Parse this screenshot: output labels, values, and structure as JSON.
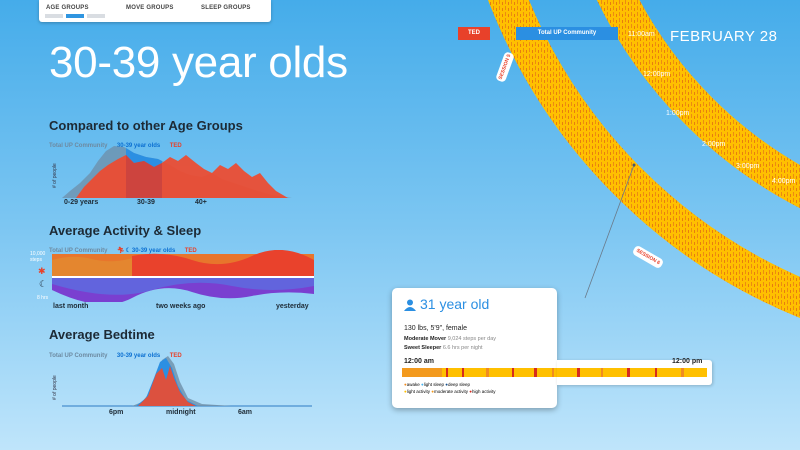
{
  "nav": {
    "tabs": [
      "AGE GROUPS",
      "MOVE GROUPS",
      "SLEEP GROUPS"
    ],
    "active": 0
  },
  "page_title": "30-39 year olds",
  "date": "FEBRUARY 28",
  "colors": {
    "total": "#6d8aa1",
    "age_group": "#2b8fe2",
    "ted": "#e8412a",
    "ring": "#ffc000"
  },
  "compare": {
    "title": "Compared to other Age Groups",
    "legend": {
      "total": "Total UP Community",
      "age": "30-39 year olds",
      "ted": "TED"
    },
    "ylabel": "# of people",
    "ticks": [
      "0-29 years",
      "30-39",
      "40+"
    ]
  },
  "activity": {
    "title": "Average Activity & Sleep",
    "legend": {
      "total": "Total UP Community",
      "age": "30-39 year olds",
      "ted": "TED"
    },
    "steps_label": "10,000 steps",
    "hrs_label": "8 hrs",
    "ticks": [
      "last month",
      "two weeks ago",
      "yesterday"
    ]
  },
  "bedtime": {
    "title": "Average Bedtime",
    "legend": {
      "total": "Total UP Community",
      "age": "30-39 year olds",
      "ted": "TED"
    },
    "ylabel": "# of people",
    "ticks": [
      "6pm",
      "midnight",
      "6am"
    ]
  },
  "rings": {
    "labels": {
      "ted": "TED",
      "community": "Total UP Community"
    },
    "sessions": [
      "SESSION 5",
      "SESSION 6"
    ],
    "times": [
      "11:00am",
      "12:00pm",
      "1:00pm",
      "2:00pm",
      "3:00pm",
      "4:00pm"
    ]
  },
  "card": {
    "heading": "31 year old",
    "stats": "130 lbs, 5'9\", female",
    "mover_label": "Moderate Mover",
    "mover_value": "9,024 steps per day",
    "sleeper_label": "Sweet Sleeper",
    "sleeper_value": "6.6 hrs per night",
    "time_start": "12:00 am",
    "time_end": "12:00 pm",
    "legend": [
      {
        "label": "awake",
        "color": "#f08b20"
      },
      {
        "label": "light sleep",
        "color": "#46b3f0"
      },
      {
        "label": "deep sleep",
        "color": "#174f8a"
      },
      {
        "label": "light activity",
        "color": "#ffc000"
      },
      {
        "label": "moderate activity",
        "color": "#f39a1e"
      },
      {
        "label": "high activity",
        "color": "#d62b1e"
      }
    ]
  }
}
